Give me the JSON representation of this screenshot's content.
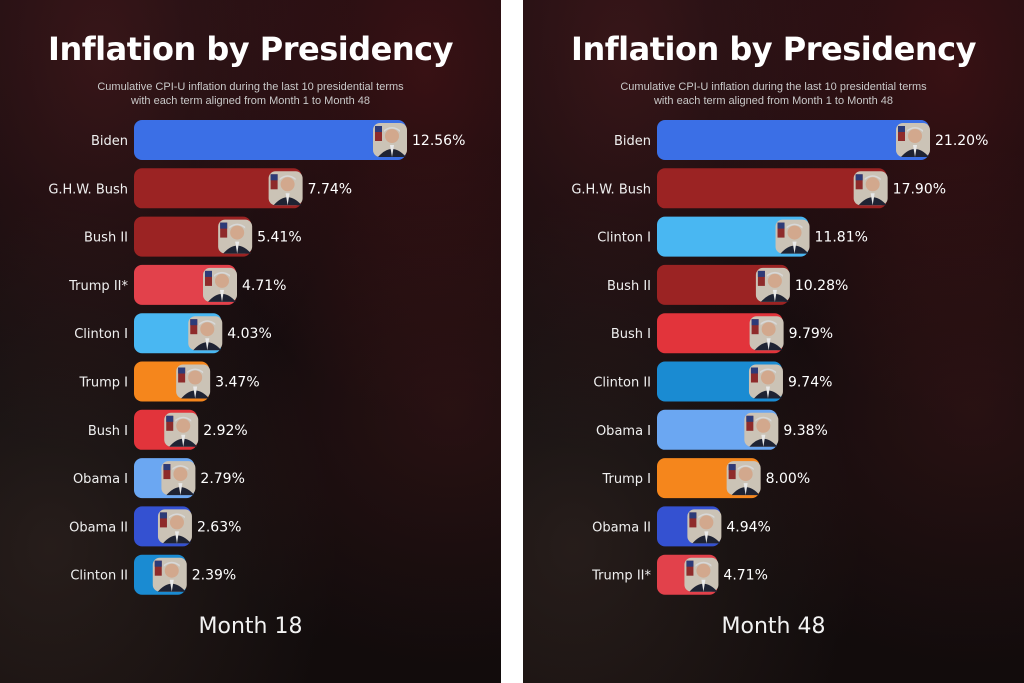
{
  "chart_data": [
    {
      "type": "bar",
      "title": "Inflation by Presidency",
      "subtitle": [
        "Cumulative CPI-U inflation during the last 10 presidential terms",
        "with each term aligned from Month 1 to Month 48"
      ],
      "period_label": "Month 18",
      "xlim": [
        0,
        12.56
      ],
      "categories": [
        "Biden",
        "G.H.W. Bush",
        "Bush II",
        "Trump II*",
        "Clinton I",
        "Trump I",
        "Bush I",
        "Obama I",
        "Obama II",
        "Clinton II"
      ],
      "values": [
        12.56,
        7.74,
        5.41,
        4.71,
        4.03,
        3.47,
        2.92,
        2.79,
        2.63,
        2.39
      ],
      "value_labels": [
        "12.56%",
        "7.74%",
        "5.41%",
        "4.71%",
        "4.03%",
        "3.47%",
        "2.92%",
        "2.79%",
        "2.63%",
        "2.39%"
      ],
      "colors": [
        "#3b6fe6",
        "#9b2323",
        "#9b2323",
        "#e2414b",
        "#49b7f2",
        "#f5861c",
        "#e2343b",
        "#6ba7f2",
        "#3451d1",
        "#1a8bd2"
      ]
    },
    {
      "type": "bar",
      "title": "Inflation by Presidency",
      "subtitle": [
        "Cumulative CPI-U inflation during the last 10 presidential terms",
        "with each term aligned from Month 1 to Month 48"
      ],
      "period_label": "Month 48",
      "xlim": [
        0,
        21.2
      ],
      "categories": [
        "Biden",
        "G.H.W. Bush",
        "Clinton I",
        "Bush II",
        "Bush I",
        "Clinton II",
        "Obama I",
        "Trump I",
        "Obama II",
        "Trump II*"
      ],
      "values": [
        21.2,
        17.9,
        11.81,
        10.28,
        9.79,
        9.74,
        9.38,
        8.0,
        4.94,
        4.71
      ],
      "value_labels": [
        "21.20%",
        "17.90%",
        "11.81%",
        "10.28%",
        "9.79%",
        "9.74%",
        "9.38%",
        "8.00%",
        "4.94%",
        "4.71%"
      ],
      "colors": [
        "#3b6fe6",
        "#9b2323",
        "#49b7f2",
        "#9b2323",
        "#e2343b",
        "#1a8bd2",
        "#6ba7f2",
        "#f5861c",
        "#3451d1",
        "#e2414b"
      ]
    }
  ]
}
